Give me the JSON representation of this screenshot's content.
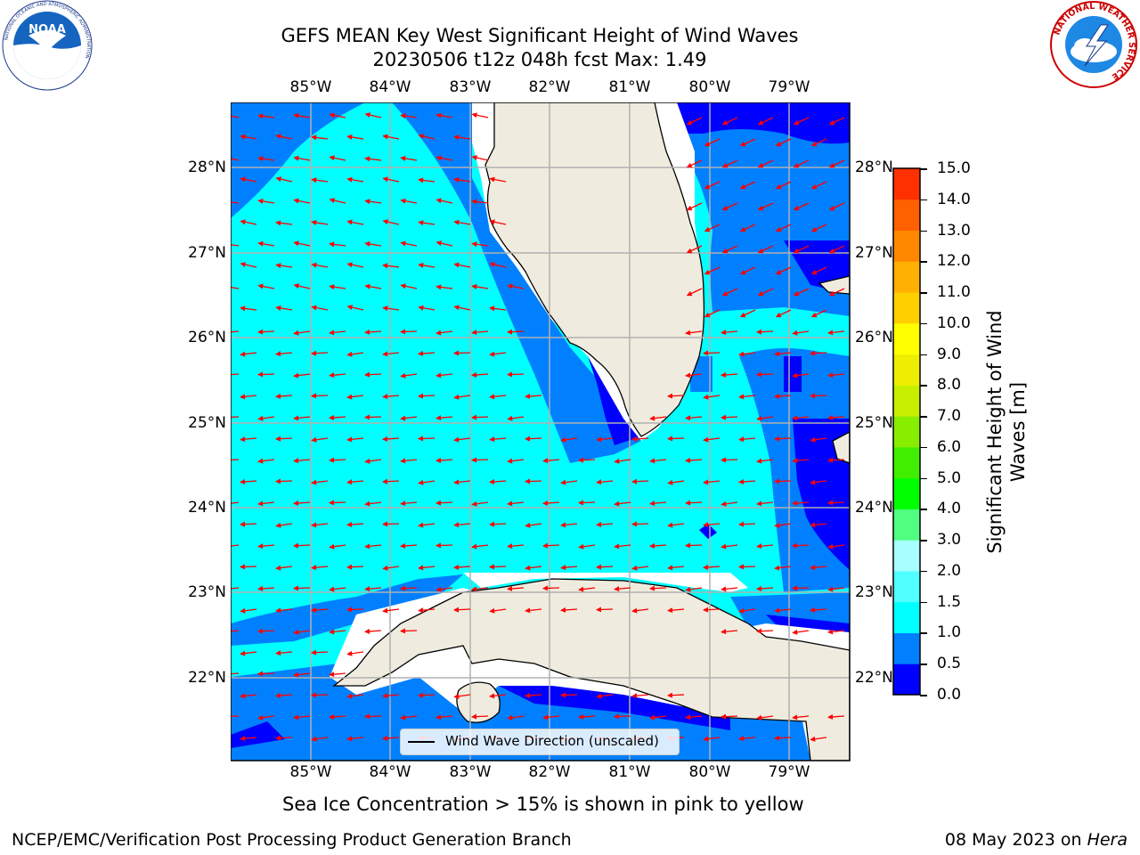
{
  "header": {
    "title_line1": "GEFS MEAN Key West Significant Height of Wind Waves",
    "title_line2": "20230506 t12z 048h fcst   Max: 1.49"
  },
  "map": {
    "lon_ticks": [
      "85°W",
      "84°W",
      "83°W",
      "82°W",
      "81°W",
      "80°W",
      "79°W"
    ],
    "lat_ticks": [
      "28°N",
      "27°N",
      "26°N",
      "25°N",
      "24°N",
      "23°N",
      "22°N"
    ],
    "legend_label": "Wind Wave Direction (unscaled)",
    "arrow_color": "#ff0000",
    "land_color": "#efecdf",
    "grid_color": "#b0b0b0"
  },
  "colorbar": {
    "label": "Significant Height of Wind Waves [m]",
    "ticks": [
      "15.0",
      "14.0",
      "13.0",
      "12.0",
      "11.0",
      "10.0",
      "9.0",
      "8.0",
      "7.0",
      "6.0",
      "5.0",
      "4.0",
      "3.0",
      "2.0",
      "1.5",
      "1.0",
      "0.5",
      "0.0"
    ],
    "colors": [
      "#0000ff",
      "#0080ff",
      "#00ffff",
      "#50ffff",
      "#a8ffff",
      "#50ff80",
      "#00ff00",
      "#40ee00",
      "#88ee00",
      "#c8ee00",
      "#eeee00",
      "#ffff00",
      "#ffd000",
      "#ffb000",
      "#ff8800",
      "#ff6000",
      "#ff3000"
    ]
  },
  "footer": {
    "ice_note": "Sea Ice Concentration > 15% is shown in pink to yellow",
    "credit": "NCEP/EMC/Verification Post Processing Product Generation Branch",
    "date": "08 May 2023 on",
    "host": "Hera"
  },
  "logos": {
    "noaa_text": "NOAA",
    "noaa_ring": "NATIONAL OCEANIC AND ATMOSPHERIC ADMINISTRATION",
    "nws_ring": "NATIONAL WEATHER SERVICE"
  }
}
